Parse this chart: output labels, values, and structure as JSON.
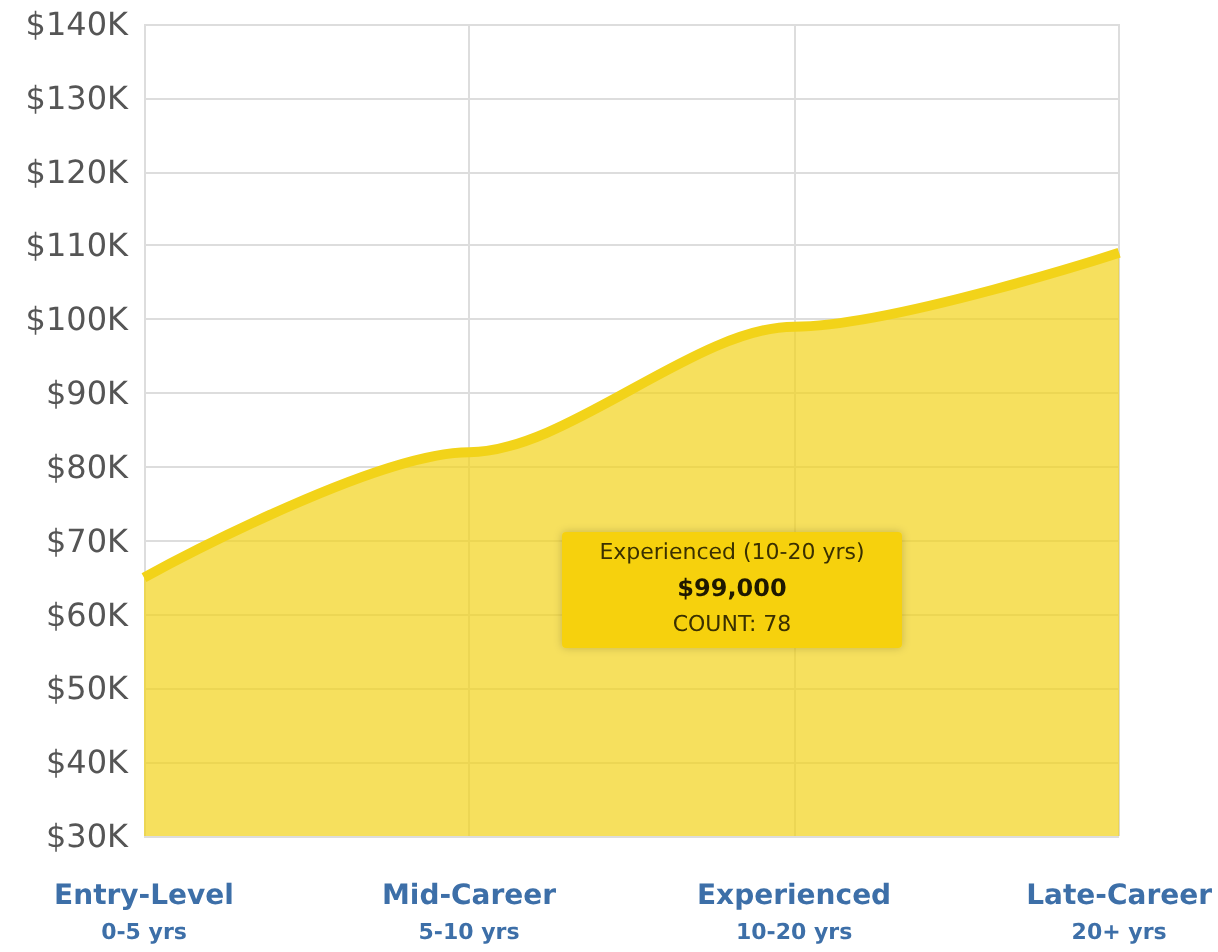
{
  "chart_data": {
    "type": "area",
    "categories": [
      "Entry-Level\n0-5 yrs",
      "Mid-Career\n5-10 yrs",
      "Experienced\n10-20 yrs",
      "Late-Career\n20+ yrs"
    ],
    "series": [
      {
        "color": "#f2d319",
        "values": [
          65000,
          82000,
          99000,
          109000
        ]
      }
    ],
    "ylim": [
      30000,
      140000
    ],
    "yticks": [
      {
        "value": 30000,
        "label": "$30K"
      },
      {
        "value": 40000,
        "label": "$40K"
      },
      {
        "value": 50000,
        "label": "$50K"
      },
      {
        "value": 60000,
        "label": "$60K"
      },
      {
        "value": 70000,
        "label": "$70K"
      },
      {
        "value": 80000,
        "label": "$80K"
      },
      {
        "value": 90000,
        "label": "$90K"
      },
      {
        "value": 100000,
        "label": "$100K"
      },
      {
        "value": 110000,
        "label": "$110K"
      },
      {
        "value": 120000,
        "label": "$120K"
      },
      {
        "value": 130000,
        "label": "$130K"
      },
      {
        "value": 140000,
        "label": "$140K"
      }
    ],
    "annotations": [
      "Experienced (10-20 yrs)\n$99,000\nCOUNT: 78"
    ],
    "grid": true,
    "marker": "none"
  }
}
